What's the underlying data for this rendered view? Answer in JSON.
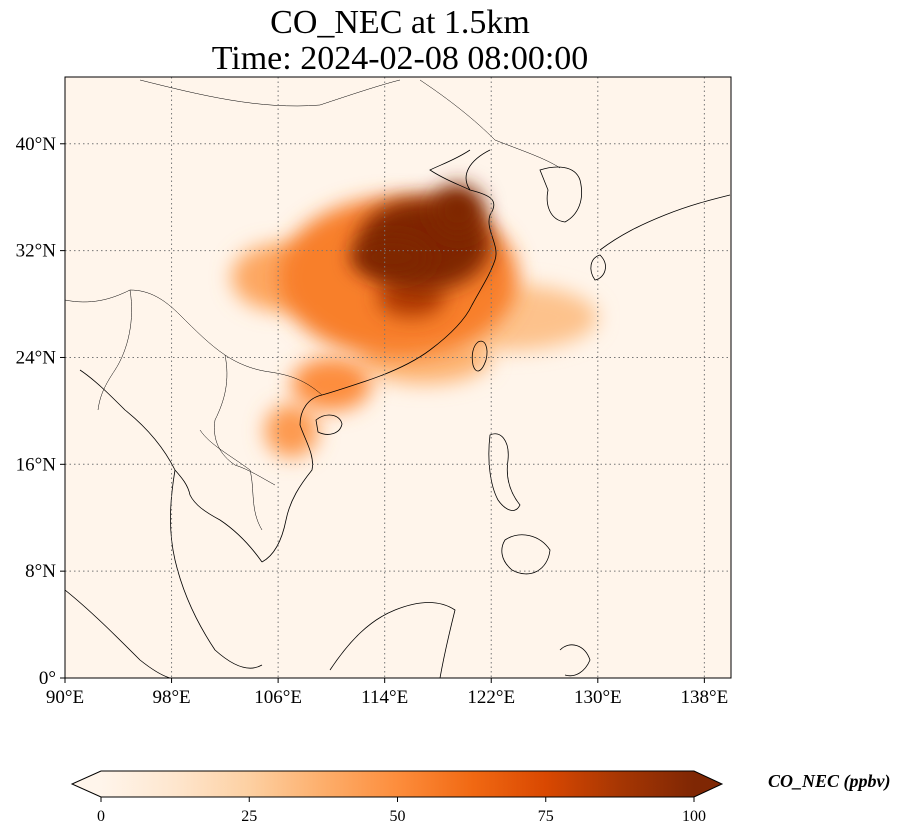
{
  "title": {
    "line1": "CO_NEC at 1.5km",
    "line2": "Time: 2024-02-08 08:00:00"
  },
  "map": {
    "lon_range": [
      90,
      140
    ],
    "lat_range": [
      0,
      45
    ],
    "lon_ticks": [
      {
        "value": 90,
        "label": "90°E"
      },
      {
        "value": 98,
        "label": "98°E"
      },
      {
        "value": 106,
        "label": "106°E"
      },
      {
        "value": 114,
        "label": "114°E"
      },
      {
        "value": 122,
        "label": "122°E"
      },
      {
        "value": 130,
        "label": "130°E"
      },
      {
        "value": 138,
        "label": "138°E"
      }
    ],
    "lat_ticks": [
      {
        "value": 0,
        "label": "0°"
      },
      {
        "value": 8,
        "label": "8°N"
      },
      {
        "value": 16,
        "label": "16°N"
      },
      {
        "value": 24,
        "label": "24°N"
      },
      {
        "value": 32,
        "label": "32°N"
      },
      {
        "value": 40,
        "label": "40°N"
      }
    ],
    "gridlines": "dotted",
    "background_color": "#fff5eb",
    "coastline_color": "#000000",
    "plumes": [
      {
        "lon": 117,
        "lat": 32.5,
        "r_lon": 5,
        "r_lat": 3.5,
        "level": 100
      },
      {
        "lon": 114.5,
        "lat": 31.5,
        "r_lon": 3,
        "r_lat": 1.5,
        "level": 100
      },
      {
        "lon": 119.5,
        "lat": 35,
        "r_lon": 2,
        "r_lat": 2,
        "level": 100
      },
      {
        "lon": 116,
        "lat": 28.5,
        "r_lon": 2.5,
        "r_lat": 1.5,
        "level": 85
      },
      {
        "lon": 115,
        "lat": 30,
        "r_lon": 9,
        "r_lat": 6,
        "level": 55
      },
      {
        "lon": 106,
        "lat": 30,
        "r_lon": 3.5,
        "r_lat": 2.5,
        "level": 40
      },
      {
        "lon": 110,
        "lat": 22,
        "r_lon": 3,
        "r_lat": 2,
        "level": 50
      },
      {
        "lon": 107,
        "lat": 18.5,
        "r_lon": 2,
        "r_lat": 2,
        "level": 45
      },
      {
        "lon": 123,
        "lat": 27,
        "r_lon": 7,
        "r_lat": 2.5,
        "level": 30
      },
      {
        "lon": 117,
        "lat": 24,
        "r_lon": 5,
        "r_lat": 2,
        "level": 35
      }
    ]
  },
  "colorbar": {
    "label": "CO_NEC (ppbv)",
    "min": 0,
    "max": 100,
    "ticks": [
      {
        "value": 0,
        "label": "0"
      },
      {
        "value": 25,
        "label": "25"
      },
      {
        "value": 50,
        "label": "50"
      },
      {
        "value": 75,
        "label": "75"
      },
      {
        "value": 100,
        "label": "100"
      }
    ],
    "colors": [
      "#fff5eb",
      "#fee6ce",
      "#fdd0a2",
      "#fdae6b",
      "#fd8d3c",
      "#f16913",
      "#d94801",
      "#a63603",
      "#7f2704"
    ],
    "extend": "both"
  }
}
